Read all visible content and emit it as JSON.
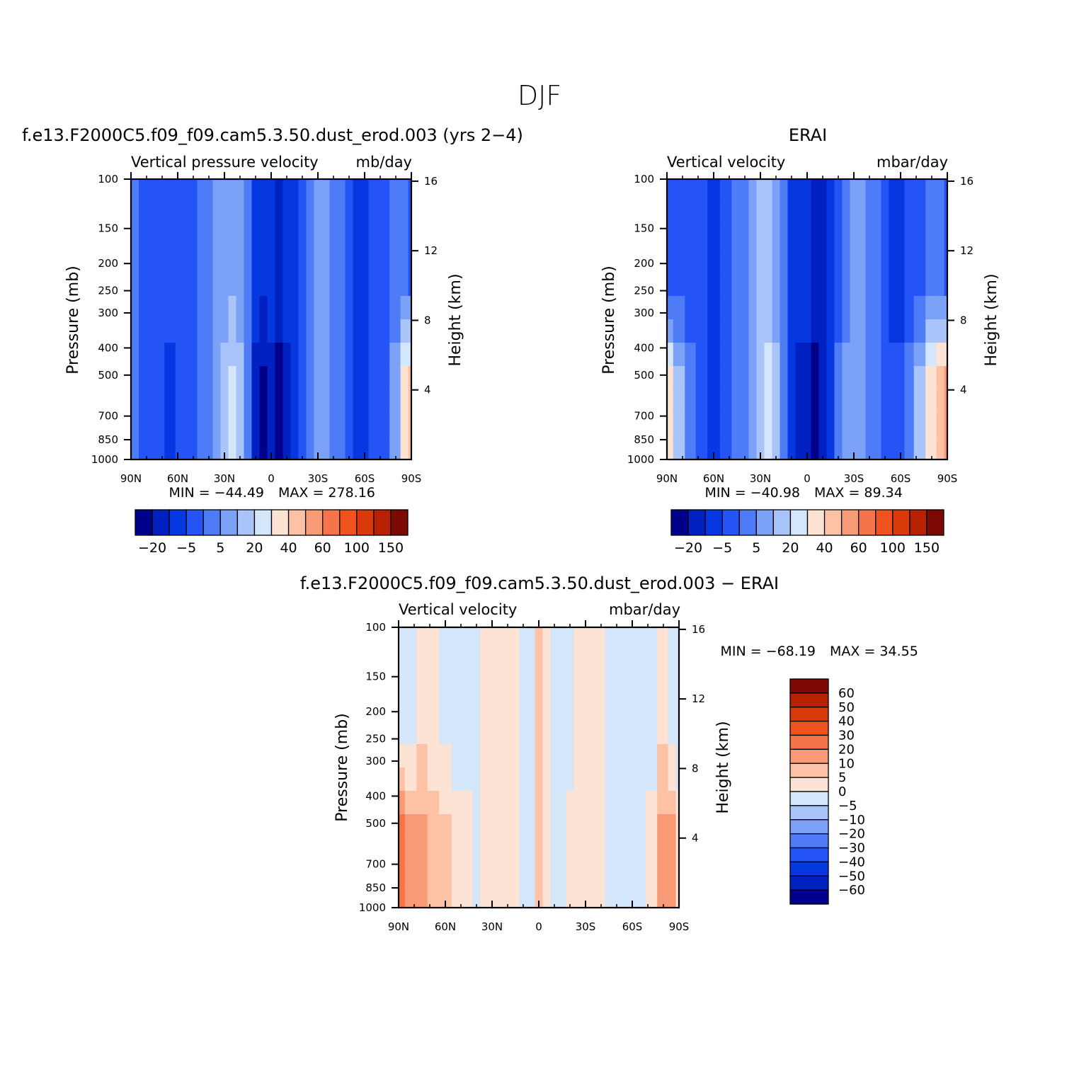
{
  "figure_title": "DJF",
  "chart_data": [
    {
      "type": "heatmap",
      "id": "model",
      "title": "f.e13.F2000C5.f09_f09.cam5.3.50.dust_erod.003 (yrs 2−4)",
      "variable": "Vertical pressure velocity",
      "units": "mb/day",
      "xlabel": "",
      "ylabel": "Pressure (mb)",
      "ylabel_right": "Height (km)",
      "x_ticks": [
        "90N",
        "60N",
        "30N",
        "0",
        "30S",
        "60S",
        "90S"
      ],
      "y_ticks": [
        "100",
        "150",
        "200",
        "250",
        "300",
        "400",
        "500",
        "700",
        "850",
        "1000"
      ],
      "y_right_ticks": [
        "16",
        "12",
        "8",
        "4"
      ],
      "y_scale": "log",
      "min_label": "MIN = −44.49",
      "max_label": "MAX = 278.16",
      "min": -44.49,
      "max": 278.16,
      "colorbar": "horizontal",
      "colorbar_labels": [
        "−20",
        "−5",
        "5",
        "20",
        "40",
        "60",
        "100",
        "150"
      ],
      "colors": [
        "#00008a",
        "#0020c0",
        "#0538e0",
        "#2454f5",
        "#4d7cf6",
        "#7ba2f7",
        "#a9c4f8",
        "#d4e6fa",
        "#fde3d3",
        "#fdc2a5",
        "#f99a76",
        "#f6744a",
        "#f0521e",
        "#da3a0a",
        "#b82002",
        "#7c0a02"
      ],
      "columns": [
        {
          "lat": 90,
          "b": 4,
          "e": 4
        },
        {
          "lat": 80,
          "b": 3,
          "e": 3
        },
        {
          "lat": 72,
          "b": 3,
          "e": 3
        },
        {
          "lat": 65,
          "b": 3,
          "e": 2
        },
        {
          "lat": 58,
          "b": 3,
          "e": 3
        },
        {
          "lat": 50,
          "b": 3,
          "e": 3
        },
        {
          "lat": 45,
          "b": 4,
          "e": 4
        },
        {
          "lat": 40,
          "b": 4,
          "e": 4
        },
        {
          "lat": 35,
          "b": 5,
          "e": 5
        },
        {
          "lat": 30,
          "b": 5,
          "e": 6
        },
        {
          "lat": 25,
          "b": 5,
          "e": 7
        },
        {
          "lat": 20,
          "b": 5,
          "e": 6
        },
        {
          "lat": 15,
          "b": 4,
          "e": 4
        },
        {
          "lat": 10,
          "b": 2,
          "e": 1
        },
        {
          "lat": 5,
          "b": 2,
          "e": 0
        },
        {
          "lat": 0,
          "b": 2,
          "e": 1
        },
        {
          "lat": -5,
          "b": 1,
          "e": 0
        },
        {
          "lat": -10,
          "b": 2,
          "e": 1
        },
        {
          "lat": -15,
          "b": 2,
          "e": 2
        },
        {
          "lat": -20,
          "b": 3,
          "e": 3
        },
        {
          "lat": -25,
          "b": 4,
          "e": 4
        },
        {
          "lat": -30,
          "b": 5,
          "e": 5
        },
        {
          "lat": -35,
          "b": 5,
          "e": 5
        },
        {
          "lat": -40,
          "b": 4,
          "e": 4
        },
        {
          "lat": -45,
          "b": 4,
          "e": 4
        },
        {
          "lat": -50,
          "b": 3,
          "e": 3
        },
        {
          "lat": -55,
          "b": 2,
          "e": 2
        },
        {
          "lat": -60,
          "b": 2,
          "e": 2
        },
        {
          "lat": -65,
          "b": 3,
          "e": 3
        },
        {
          "lat": -72,
          "b": 3,
          "e": 3
        },
        {
          "lat": -80,
          "b": 4,
          "e": 5
        },
        {
          "lat": -86,
          "b": 4,
          "e": 8
        },
        {
          "lat": -90,
          "b": 3,
          "e": 9
        }
      ]
    },
    {
      "type": "heatmap",
      "id": "erai",
      "title": "ERAI",
      "variable": "Vertical velocity",
      "units": "mbar/day",
      "xlabel": "",
      "ylabel": "Pressure (mb)",
      "ylabel_right": "Height (km)",
      "x_ticks": [
        "90N",
        "60N",
        "30N",
        "0",
        "30S",
        "60S",
        "90S"
      ],
      "y_ticks": [
        "100",
        "150",
        "200",
        "250",
        "300",
        "400",
        "500",
        "700",
        "850",
        "1000"
      ],
      "y_right_ticks": [
        "16",
        "12",
        "8",
        "4"
      ],
      "y_scale": "log",
      "min_label": "MIN = −40.98",
      "max_label": "MAX = 89.34",
      "min": -40.98,
      "max": 89.34,
      "colorbar": "horizontal",
      "colorbar_labels": [
        "−20",
        "−5",
        "5",
        "20",
        "40",
        "60",
        "100",
        "150"
      ],
      "colors": [
        "#00008a",
        "#0020c0",
        "#0538e0",
        "#2454f5",
        "#4d7cf6",
        "#7ba2f7",
        "#a9c4f8",
        "#d4e6fa",
        "#fde3d3",
        "#fdc2a5",
        "#f99a76",
        "#f6744a",
        "#f0521e",
        "#da3a0a",
        "#b82002",
        "#7c0a02"
      ],
      "columns": [
        {
          "lat": 90,
          "b": 3,
          "e": 8
        },
        {
          "lat": 82,
          "b": 3,
          "e": 6
        },
        {
          "lat": 75,
          "b": 3,
          "e": 4
        },
        {
          "lat": 68,
          "b": 3,
          "e": 3
        },
        {
          "lat": 60,
          "b": 2,
          "e": 2
        },
        {
          "lat": 52,
          "b": 3,
          "e": 3
        },
        {
          "lat": 45,
          "b": 4,
          "e": 4
        },
        {
          "lat": 40,
          "b": 4,
          "e": 4
        },
        {
          "lat": 35,
          "b": 5,
          "e": 5
        },
        {
          "lat": 30,
          "b": 6,
          "e": 6
        },
        {
          "lat": 25,
          "b": 6,
          "e": 7
        },
        {
          "lat": 20,
          "b": 5,
          "e": 6
        },
        {
          "lat": 15,
          "b": 4,
          "e": 4
        },
        {
          "lat": 10,
          "b": 2,
          "e": 2
        },
        {
          "lat": 5,
          "b": 2,
          "e": 1
        },
        {
          "lat": 0,
          "b": 2,
          "e": 1
        },
        {
          "lat": -5,
          "b": 1,
          "e": 0
        },
        {
          "lat": -10,
          "b": 1,
          "e": 1
        },
        {
          "lat": -15,
          "b": 2,
          "e": 2
        },
        {
          "lat": -20,
          "b": 3,
          "e": 4
        },
        {
          "lat": -25,
          "b": 4,
          "e": 5
        },
        {
          "lat": -30,
          "b": 5,
          "e": 5
        },
        {
          "lat": -35,
          "b": 5,
          "e": 5
        },
        {
          "lat": -40,
          "b": 4,
          "e": 4
        },
        {
          "lat": -45,
          "b": 4,
          "e": 4
        },
        {
          "lat": -50,
          "b": 3,
          "e": 3
        },
        {
          "lat": -55,
          "b": 2,
          "e": 3
        },
        {
          "lat": -60,
          "b": 2,
          "e": 3
        },
        {
          "lat": -65,
          "b": 3,
          "e": 4
        },
        {
          "lat": -72,
          "b": 3,
          "e": 6
        },
        {
          "lat": -80,
          "b": 4,
          "e": 8
        },
        {
          "lat": -86,
          "b": 4,
          "e": 9
        },
        {
          "lat": -90,
          "b": 3,
          "e": 10
        }
      ]
    },
    {
      "type": "heatmap",
      "id": "diff",
      "title": "f.e13.F2000C5.f09_f09.cam5.3.50.dust_erod.003 − ERAI",
      "variable": "Vertical velocity",
      "units": "mbar/day",
      "xlabel": "",
      "ylabel": "Pressure (mb)",
      "ylabel_right": "Height (km)",
      "x_ticks": [
        "90N",
        "60N",
        "30N",
        "0",
        "30S",
        "60S",
        "90S"
      ],
      "y_ticks": [
        "100",
        "150",
        "200",
        "250",
        "300",
        "400",
        "500",
        "700",
        "850",
        "1000"
      ],
      "y_right_ticks": [
        "16",
        "12",
        "8",
        "4"
      ],
      "y_scale": "log",
      "min_label": "MIN = −68.19",
      "max_label": "MAX = 34.55",
      "min": -68.19,
      "max": 34.55,
      "colorbar": "vertical",
      "colorbar_labels": [
        "60",
        "50",
        "40",
        "30",
        "20",
        "10",
        "5",
        "0",
        "−5",
        "−10",
        "−20",
        "−30",
        "−40",
        "−50",
        "−60"
      ],
      "colors": [
        "#7c0a02",
        "#b82002",
        "#da3a0a",
        "#f0521e",
        "#f6744a",
        "#f99a76",
        "#fdc2a5",
        "#fde3d3",
        "#d4e6fa",
        "#a9c4f8",
        "#7ba2f7",
        "#4d7cf6",
        "#2454f5",
        "#0538e0",
        "#0020c0",
        "#00008a"
      ],
      "columns": [
        {
          "lat": 90,
          "b": 8,
          "e": 4
        },
        {
          "lat": 82,
          "b": 8,
          "e": 5
        },
        {
          "lat": 75,
          "b": 7,
          "e": 5
        },
        {
          "lat": 68,
          "b": 7,
          "e": 6
        },
        {
          "lat": 60,
          "b": 8,
          "e": 6
        },
        {
          "lat": 52,
          "b": 8,
          "e": 7
        },
        {
          "lat": 45,
          "b": 8,
          "e": 7
        },
        {
          "lat": 40,
          "b": 8,
          "e": 8
        },
        {
          "lat": 35,
          "b": 7,
          "e": 7
        },
        {
          "lat": 30,
          "b": 7,
          "e": 7
        },
        {
          "lat": 25,
          "b": 7,
          "e": 7
        },
        {
          "lat": 20,
          "b": 7,
          "e": 7
        },
        {
          "lat": 15,
          "b": 7,
          "e": 7
        },
        {
          "lat": 10,
          "b": 8,
          "e": 8
        },
        {
          "lat": 5,
          "b": 8,
          "e": 8
        },
        {
          "lat": 0,
          "b": 6,
          "e": 6
        },
        {
          "lat": -5,
          "b": 7,
          "e": 7
        },
        {
          "lat": -10,
          "b": 8,
          "e": 8
        },
        {
          "lat": -15,
          "b": 8,
          "e": 8
        },
        {
          "lat": -20,
          "b": 8,
          "e": 7
        },
        {
          "lat": -25,
          "b": 7,
          "e": 7
        },
        {
          "lat": -30,
          "b": 7,
          "e": 7
        },
        {
          "lat": -35,
          "b": 7,
          "e": 7
        },
        {
          "lat": -40,
          "b": 7,
          "e": 7
        },
        {
          "lat": -45,
          "b": 8,
          "e": 8
        },
        {
          "lat": -50,
          "b": 8,
          "e": 8
        },
        {
          "lat": -55,
          "b": 8,
          "e": 8
        },
        {
          "lat": -60,
          "b": 8,
          "e": 8
        },
        {
          "lat": -65,
          "b": 8,
          "e": 8
        },
        {
          "lat": -72,
          "b": 8,
          "e": 7
        },
        {
          "lat": -80,
          "b": 7,
          "e": 5
        },
        {
          "lat": -86,
          "b": 8,
          "e": 5
        },
        {
          "lat": -90,
          "b": 8,
          "e": 7
        }
      ]
    }
  ]
}
